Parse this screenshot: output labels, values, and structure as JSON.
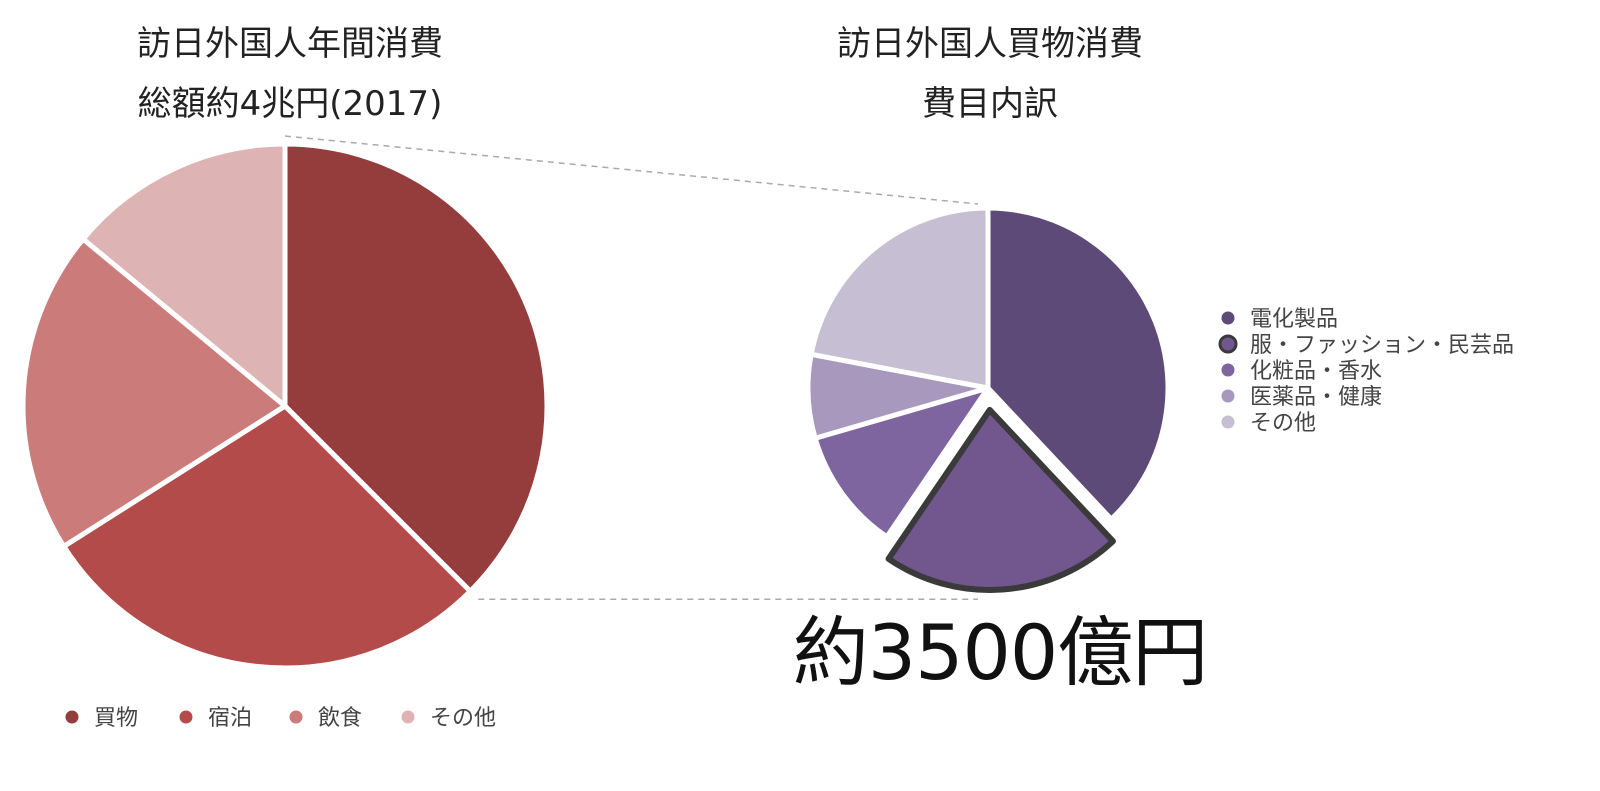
{
  "chart_data": [
    {
      "type": "pie",
      "title_lines": [
        "訪日外国人年間消費",
        "総額約4兆円(2017)"
      ],
      "categories": [
        "買物",
        "宿泊",
        "飲食",
        "その他"
      ],
      "values": [
        37.5,
        28.5,
        20.0,
        14.0
      ],
      "colors": [
        "#953d3d",
        "#b34b4a",
        "#cb7b7a",
        "#deb3b3"
      ],
      "legend_position": "bottom",
      "exploded_slice": "買物"
    },
    {
      "type": "pie",
      "title_lines": [
        "訪日外国人買物消費",
        "費目内訳"
      ],
      "categories": [
        "電化製品",
        "服・ファッション・民芸品",
        "化粧品・香水",
        "医薬品・健康",
        "その他"
      ],
      "values": [
        38.0,
        21.5,
        11.0,
        7.5,
        22.0
      ],
      "colors": [
        "#5e4a78",
        "#71578d",
        "#7f65a0",
        "#a898bd",
        "#c6bfd4"
      ],
      "legend_position": "right",
      "highlighted_slice": "服・ファッション・民芸品",
      "callout": "約3500億円"
    }
  ]
}
